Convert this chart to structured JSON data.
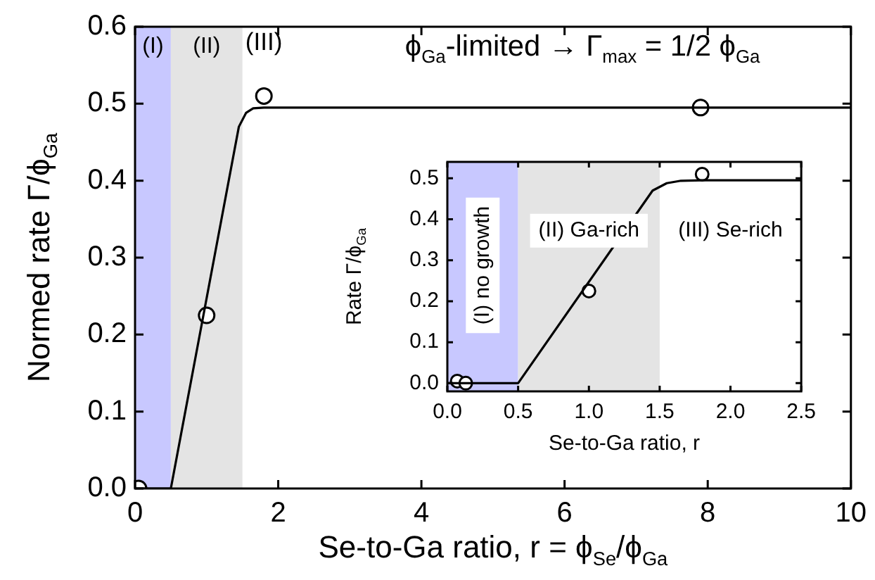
{
  "chart_data": [
    {
      "type": "line",
      "xlabel": "Se-to-Ga ratio, r = ϕ$_{Se}$/ϕ$_{Ga}$",
      "ylabel": "Normed rate Γ/ϕ$_{Ga}$",
      "xlim": [
        0,
        10
      ],
      "xticks": [
        0,
        2,
        4,
        6,
        8,
        10
      ],
      "ylim": [
        0,
        0.6
      ],
      "yticks": [
        {
          "value": 0,
          "label": "0.0"
        },
        0.1,
        0.2,
        0.3,
        0.4,
        0.5,
        0.6
      ],
      "grid": false,
      "bands": [
        {
          "axis": "x",
          "from": 0,
          "to": 0.5,
          "label": "(I)",
          "color": "#c8c8ff"
        },
        {
          "axis": "x",
          "from": 0.5,
          "to": 1.5,
          "label": "(II)",
          "color": "#e4e4e4"
        }
      ],
      "annotations": [
        "(III)",
        "ϕ$_{Ga}$-limited → Γ$_{max}$ = 1/2 ϕ$_{Ga}$"
      ],
      "series": [
        {
          "type": "line",
          "color": "#000000",
          "marker": "none",
          "x": [
            0,
            0.5,
            1.45,
            1.55,
            1.65,
            1.8,
            10
          ],
          "values": [
            0,
            0,
            0.47,
            0.488,
            0.494,
            0.495,
            0.495
          ]
        },
        {
          "type": "scatter",
          "color": "#000000",
          "marker": "circle",
          "x": [
            0.05,
            1.0,
            1.8,
            7.9
          ],
          "values": [
            0,
            0.225,
            0.51,
            0.495
          ]
        }
      ]
    },
    {
      "type": "line",
      "xlabel": "Se-to-Ga ratio, r",
      "ylabel": "Rate Γ/ϕ$_{Ga}$",
      "xlim": [
        0,
        2.5
      ],
      "xticks": [
        {
          "value": 0,
          "label": "0.0"
        },
        0.5,
        {
          "value": 1,
          "label": "1.0"
        },
        1.5,
        {
          "value": 2,
          "label": "2.0"
        },
        2.5
      ],
      "ylim": [
        -0.02,
        0.54
      ],
      "yticks": [
        {
          "value": 0,
          "label": "0.0"
        },
        0.1,
        0.2,
        0.3,
        0.4,
        0.5
      ],
      "grid": false,
      "bands": [
        {
          "axis": "x",
          "from": 0,
          "to": 0.5,
          "label": "(I) no growth",
          "color": "#c8c8ff"
        },
        {
          "axis": "x",
          "from": 0.5,
          "to": 1.5,
          "label": "(II) Ga-rich",
          "color": "#e4e4e4"
        }
      ],
      "annotations": [
        "(III) Se-rich"
      ],
      "series": [
        {
          "type": "line",
          "color": "#000000",
          "marker": "none",
          "x": [
            0,
            0.5,
            1.45,
            1.55,
            1.65,
            1.8,
            2.5
          ],
          "values": [
            0,
            0,
            0.47,
            0.488,
            0.494,
            0.495,
            0.495
          ]
        },
        {
          "type": "scatter",
          "color": "#000000",
          "marker": "circle",
          "x": [
            0.07,
            0.13,
            1.0,
            1.8
          ],
          "values": [
            0.005,
            0,
            0.225,
            0.51
          ]
        }
      ]
    }
  ]
}
